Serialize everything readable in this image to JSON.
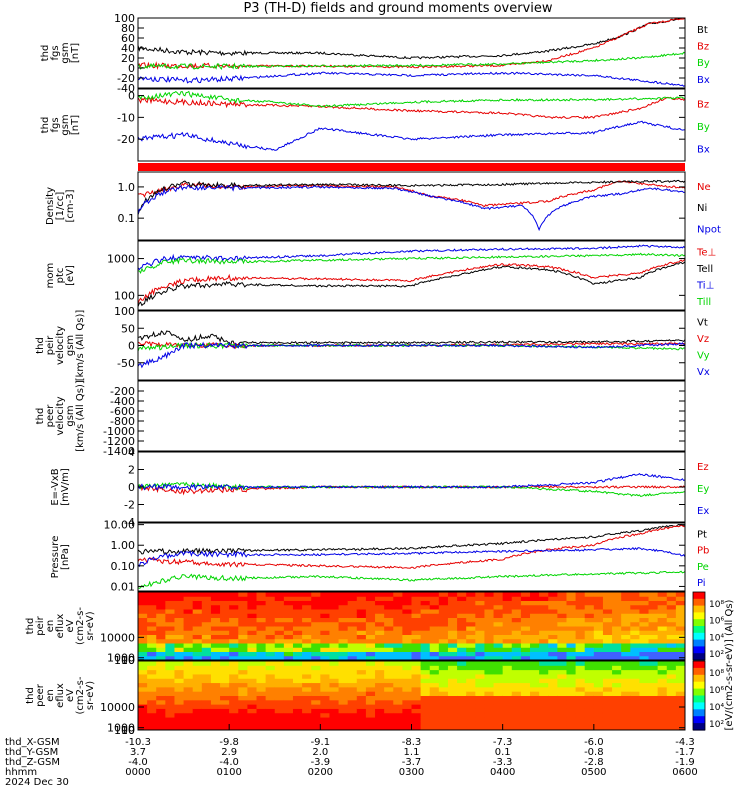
{
  "title": "P3 (TH-D) fields and ground moments overview",
  "colors": {
    "black": "#000000",
    "red": "#e60000",
    "green": "#00d400",
    "blue": "#0000e6"
  },
  "chart_data": [
    {
      "type": "line",
      "panel": "fgs_btot",
      "ylabel": [
        "thd",
        "fgs",
        "gsm",
        "[nT]"
      ],
      "ylim": [
        -40,
        100
      ],
      "yticks": [
        "100",
        "80",
        "60",
        "40",
        "20",
        "0",
        "-20",
        "-40"
      ],
      "yticks_v": [
        100,
        80,
        60,
        40,
        20,
        0,
        -20,
        -40
      ],
      "series": [
        {
          "name": "Bt",
          "color": "black",
          "x": [
            0,
            0.5,
            1,
            2,
            3,
            4,
            4.5,
            5,
            5.3,
            5.6,
            6
          ],
          "y": [
            40,
            32,
            30,
            30,
            20,
            25,
            34,
            48,
            64,
            88,
            100
          ]
        },
        {
          "name": "Bz",
          "color": "red",
          "x": [
            0,
            1,
            2,
            3,
            4,
            4.5,
            5,
            5.3,
            5.6,
            6
          ],
          "y": [
            5,
            4,
            4,
            2,
            5,
            15,
            40,
            64,
            88,
            100
          ]
        },
        {
          "name": "By",
          "color": "green",
          "x": [
            0,
            1,
            2,
            3,
            4,
            5,
            5.5,
            6
          ],
          "y": [
            3,
            3,
            4,
            5,
            8,
            15,
            20,
            30
          ]
        },
        {
          "name": "Bx",
          "color": "blue",
          "x": [
            0,
            0.5,
            1,
            2,
            3,
            4,
            5,
            5.5,
            6
          ],
          "y": [
            -20,
            -25,
            -22,
            -10,
            -15,
            -10,
            -15,
            -25,
            -35
          ]
        }
      ]
    },
    {
      "type": "line",
      "panel": "fgs_comp",
      "ylabel": [
        "thd",
        "fgs",
        "gsm",
        "[nT]"
      ],
      "ylim": [
        -30,
        3
      ],
      "yticks": [
        "0",
        "-10",
        "-20"
      ],
      "yticks_v": [
        0,
        -10,
        -20
      ],
      "series": [
        {
          "name": "Bz",
          "color": "red",
          "x": [
            0,
            0.5,
            1,
            2,
            3,
            4,
            4.5,
            5,
            5.5,
            5.8,
            6
          ],
          "y": [
            -2,
            -3,
            -4,
            -5,
            -7,
            -8,
            -10,
            -10,
            -6,
            -1,
            -2
          ]
        },
        {
          "name": "By",
          "color": "green",
          "x": [
            0,
            0.5,
            1,
            1.5,
            2,
            3,
            4,
            5,
            6
          ],
          "y": [
            -1,
            1,
            -2,
            -3,
            -5,
            -3,
            -2,
            -2,
            -1
          ]
        },
        {
          "name": "Bx",
          "color": "blue",
          "x": [
            0,
            0.5,
            1,
            1.5,
            2,
            3,
            4,
            5,
            5.5,
            6
          ],
          "y": [
            -20,
            -18,
            -22,
            -25,
            -15,
            -20,
            -18,
            -17,
            -12,
            -16
          ]
        }
      ]
    },
    {
      "type": "line",
      "panel": "density",
      "log": true,
      "ylabel": [
        "Density",
        "[1/cc]",
        "[cm-3]"
      ],
      "ylim": [
        0.02,
        3
      ],
      "yticks": [
        "1.0",
        "0.1"
      ],
      "yticks_v": [
        1.0,
        0.1
      ],
      "series": [
        {
          "name": "Ne",
          "color": "red",
          "x": [
            0,
            0.3,
            0.5,
            1,
            2,
            2.8,
            3.2,
            3.5,
            3.8,
            4.2,
            4.5,
            5,
            5.3,
            5.6,
            6
          ],
          "y": [
            0.5,
            0.8,
            1.2,
            1.0,
            1.1,
            1.0,
            0.5,
            0.4,
            0.25,
            0.3,
            0.35,
            0.8,
            1.5,
            1.2,
            0.9
          ]
        },
        {
          "name": "Ni",
          "color": "black",
          "x": [
            0,
            0.3,
            0.5,
            1,
            2,
            3,
            4,
            5,
            5.5,
            6
          ],
          "y": [
            0.15,
            0.9,
            1.3,
            1.1,
            1.2,
            1.1,
            1.2,
            1.4,
            1.5,
            1.5
          ]
        },
        {
          "name": "Npot",
          "color": "blue",
          "x": [
            0,
            0.3,
            0.5,
            1,
            2,
            2.8,
            3.2,
            3.5,
            3.8,
            4.2,
            4.4,
            4.6,
            5,
            5.3,
            5.6,
            6
          ],
          "y": [
            0.15,
            0.7,
            1.0,
            0.9,
            1.0,
            0.9,
            0.5,
            0.35,
            0.2,
            0.25,
            0.04,
            0.2,
            0.5,
            0.6,
            0.9,
            0.7
          ]
        }
      ]
    },
    {
      "type": "line",
      "panel": "temperature",
      "log": true,
      "ylabel": [
        "mom",
        "ptc",
        "[eV]"
      ],
      "ylim": [
        40,
        3000
      ],
      "yticks": [
        "1000",
        "100"
      ],
      "yticks_v": [
        1000,
        100
      ],
      "series": [
        {
          "name": "Te⊥",
          "color": "red",
          "x": [
            0,
            0.3,
            0.5,
            1,
            2,
            3,
            3.5,
            4,
            4.5,
            5,
            5.5,
            6
          ],
          "y": [
            60,
            180,
            250,
            300,
            280,
            250,
            450,
            700,
            600,
            300,
            400,
            900
          ]
        },
        {
          "name": "Tell",
          "color": "black",
          "x": [
            0,
            0.3,
            0.5,
            1,
            2,
            3,
            3.5,
            4,
            4.5,
            5,
            5.5,
            6
          ],
          "y": [
            50,
            130,
            180,
            200,
            180,
            180,
            350,
            600,
            500,
            200,
            300,
            800
          ]
        },
        {
          "name": "Ti⊥",
          "color": "blue",
          "x": [
            0,
            0.3,
            0.5,
            1,
            2,
            3,
            4,
            5,
            5.5,
            6
          ],
          "y": [
            500,
            1000,
            1100,
            1000,
            1200,
            1600,
            1800,
            1900,
            2200,
            2000
          ]
        },
        {
          "name": "Till",
          "color": "green",
          "x": [
            0,
            0.3,
            0.5,
            1,
            2,
            3,
            4,
            5,
            5.5,
            6
          ],
          "y": [
            400,
            800,
            900,
            800,
            900,
            1000,
            1100,
            1200,
            1300,
            1200
          ]
        }
      ]
    },
    {
      "type": "line",
      "panel": "peir_velocity",
      "ylabel": [
        "thd",
        "peir",
        "velocity",
        "gsm",
        "[km/s (All Qs)]"
      ],
      "ylim": [
        -100,
        100
      ],
      "yticks": [
        "100",
        "50",
        "0",
        "-50"
      ],
      "yticks_v": [
        100,
        50,
        0,
        -50
      ],
      "series": [
        {
          "name": "Vt",
          "color": "black",
          "x": [
            0,
            0.3,
            0.5,
            0.8,
            1,
            2,
            3,
            4,
            5,
            6
          ],
          "y": [
            20,
            40,
            15,
            30,
            8,
            8,
            8,
            10,
            10,
            15
          ]
        },
        {
          "name": "Vz",
          "color": "red",
          "x": [
            0,
            0.5,
            1,
            2,
            3,
            4,
            5,
            6
          ],
          "y": [
            5,
            0,
            0,
            0,
            0,
            2,
            5,
            5
          ]
        },
        {
          "name": "Vy",
          "color": "green",
          "x": [
            0,
            0.5,
            1,
            2,
            3,
            4,
            5,
            6
          ],
          "y": [
            -10,
            0,
            0,
            0,
            0,
            0,
            -5,
            -10
          ]
        },
        {
          "name": "Vx",
          "color": "blue",
          "x": [
            0,
            0.3,
            0.5,
            1,
            2,
            3,
            4,
            5,
            6
          ],
          "y": [
            -60,
            -30,
            0,
            0,
            0,
            0,
            0,
            -5,
            5
          ]
        }
      ]
    },
    {
      "type": "line",
      "panel": "peer_velocity",
      "ylabel": [
        "thd",
        "peer",
        "velocity",
        "gsm",
        "[km/s (All Qs)]"
      ],
      "ylim": [
        -1400,
        0
      ],
      "yticks": [
        "-200",
        "-400",
        "-600",
        "-800",
        "-1000",
        "-1200",
        "-1400"
      ],
      "yticks_v": [
        -200,
        -400,
        -600,
        -800,
        -1000,
        -1200,
        -1400
      ],
      "series": []
    },
    {
      "type": "line",
      "panel": "efield",
      "ylabel": [
        "E=-VxB",
        "[mV/m]"
      ],
      "ylim": [
        -4,
        4
      ],
      "yticks": [
        "4",
        "2",
        "0",
        "-2",
        "-4"
      ],
      "yticks_v": [
        4,
        2,
        0,
        -2,
        -4
      ],
      "series": [
        {
          "name": "Ez",
          "color": "red",
          "x": [
            0,
            0.5,
            1,
            2,
            3,
            4,
            5,
            6
          ],
          "y": [
            0,
            -0.5,
            -0.3,
            0,
            0,
            0,
            0,
            0
          ]
        },
        {
          "name": "Ey",
          "color": "green",
          "x": [
            0,
            0.5,
            1,
            2,
            3,
            4,
            5,
            5.5,
            6
          ],
          "y": [
            0,
            0.3,
            0,
            0,
            0,
            0,
            -0.5,
            -1,
            -0.5
          ]
        },
        {
          "name": "Ex",
          "color": "blue",
          "x": [
            0,
            1,
            2,
            3,
            4,
            5,
            5.5,
            6
          ],
          "y": [
            0,
            0,
            0,
            0,
            0,
            0.5,
            1.5,
            0.8
          ]
        }
      ]
    },
    {
      "type": "line",
      "panel": "pressure",
      "log": true,
      "ylabel": [
        "Pressure",
        "[nPa]"
      ],
      "ylim": [
        0.006,
        12
      ],
      "yticks": [
        "10.00",
        "1.00",
        "0.10",
        "0.01"
      ],
      "yticks_v": [
        10,
        1,
        0.1,
        0.01
      ],
      "series": [
        {
          "name": "Pt",
          "color": "black",
          "x": [
            0,
            1,
            2,
            3,
            4,
            5,
            5.5,
            6
          ],
          "y": [
            0.5,
            0.55,
            0.6,
            0.7,
            1.2,
            2.5,
            5,
            10
          ]
        },
        {
          "name": "Pb",
          "color": "red",
          "x": [
            0,
            0.5,
            1,
            2,
            3,
            4,
            5,
            5.5,
            6
          ],
          "y": [
            0.2,
            0.15,
            0.12,
            0.1,
            0.08,
            0.2,
            1.0,
            3.5,
            9
          ]
        },
        {
          "name": "Pe",
          "color": "green",
          "x": [
            0,
            0.3,
            0.5,
            1,
            2,
            3,
            4,
            5,
            6
          ],
          "y": [
            0.008,
            0.02,
            0.03,
            0.025,
            0.03,
            0.02,
            0.03,
            0.04,
            0.05
          ]
        },
        {
          "name": "Pi",
          "color": "blue",
          "x": [
            0,
            0.3,
            0.5,
            1,
            2,
            3,
            4,
            5,
            5.5,
            6
          ],
          "y": [
            0.1,
            0.3,
            0.4,
            0.35,
            0.35,
            0.4,
            0.5,
            0.6,
            0.7,
            0.3
          ]
        }
      ]
    },
    {
      "type": "heatmap",
      "panel": "peir_spec",
      "ylabel": [
        "thd",
        "peir",
        "en",
        "eflux",
        "eV",
        "(cm2-s-",
        "sr-eV)"
      ],
      "ylim": [
        5,
        30000
      ],
      "yticks": [
        "10000",
        "1000",
        "100",
        "10"
      ],
      "yticks_v": [
        10000,
        1000,
        100,
        10
      ],
      "colorbar_ticks": [
        "10⁸",
        "10⁶",
        "10⁴",
        "10²"
      ]
    },
    {
      "type": "heatmap",
      "panel": "peer_spec",
      "ylabel": [
        "thd",
        "peer",
        "en",
        "eflux",
        "eV",
        "(cm2-s-",
        "sr-eV)"
      ],
      "ylim": [
        5,
        30000
      ],
      "yticks": [
        "10000",
        "1000",
        "100",
        "10"
      ],
      "yticks_v": [
        10000,
        1000,
        100,
        10
      ],
      "colorbar_ticks": [
        "10⁸",
        "10⁶",
        "10⁴",
        "10²"
      ]
    }
  ],
  "colorbar_title": "[eV/(cm2-s-sr-eV)] (All Qs)",
  "xaxis": {
    "rows": [
      {
        "label": "thd_X-GSM",
        "values": [
          "-10.3",
          "-9.8",
          "-9.1",
          "-8.3",
          "-7.3",
          "-6.0",
          "-4.3"
        ]
      },
      {
        "label": "thd_Y-GSM",
        "values": [
          "3.7",
          "2.9",
          "2.0",
          "1.1",
          "0.1",
          "-0.8",
          "-1.7"
        ]
      },
      {
        "label": "thd_Z-GSM",
        "values": [
          "-4.0",
          "-4.0",
          "-3.9",
          "-3.7",
          "-3.3",
          "-2.8",
          "-1.9"
        ]
      },
      {
        "label": "hhmm",
        "values": [
          "0000",
          "0100",
          "0200",
          "0300",
          "0400",
          "0500",
          "0600"
        ]
      }
    ],
    "date": "2024 Dec 30"
  }
}
